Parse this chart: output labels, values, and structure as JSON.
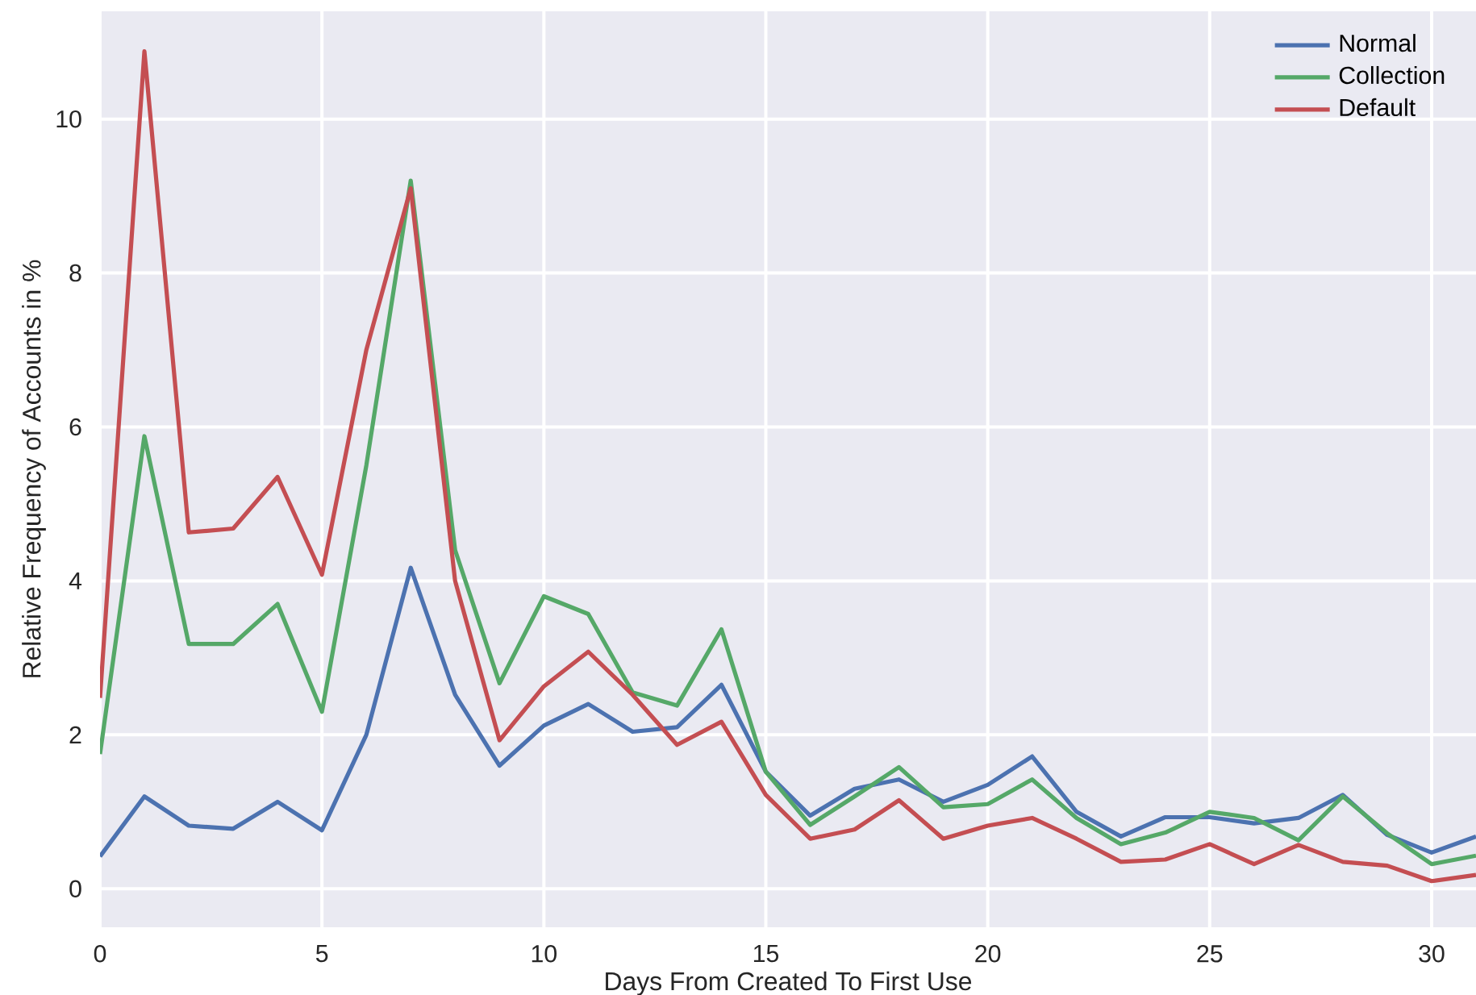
{
  "chart_data": {
    "type": "line",
    "xlabel": "Days From Created To First Use",
    "ylabel": "Relative Frequency of Accounts in %",
    "x": [
      0,
      1,
      2,
      3,
      4,
      5,
      6,
      7,
      8,
      9,
      10,
      11,
      12,
      13,
      14,
      15,
      16,
      17,
      18,
      19,
      20,
      21,
      22,
      23,
      24,
      25,
      26,
      27,
      28,
      29,
      30,
      31
    ],
    "series": [
      {
        "name": "Normal",
        "color": "#4c72b0",
        "values": [
          0.42,
          1.2,
          0.82,
          0.78,
          1.13,
          0.76,
          2.0,
          4.17,
          2.52,
          1.6,
          2.12,
          2.4,
          2.04,
          2.1,
          2.65,
          1.52,
          0.95,
          1.3,
          1.42,
          1.13,
          1.35,
          1.72,
          1.0,
          0.68,
          0.93,
          0.93,
          0.85,
          0.92,
          1.22,
          0.7,
          0.47,
          0.68
        ]
      },
      {
        "name": "Collection",
        "color": "#55a868",
        "values": [
          1.75,
          5.88,
          3.18,
          3.18,
          3.7,
          2.3,
          5.5,
          9.2,
          4.4,
          2.67,
          3.8,
          3.57,
          2.55,
          2.38,
          3.37,
          1.52,
          0.83,
          1.2,
          1.58,
          1.06,
          1.1,
          1.42,
          0.92,
          0.58,
          0.73,
          1.0,
          0.92,
          0.63,
          1.2,
          0.72,
          0.32,
          0.43
        ]
      },
      {
        "name": "Default",
        "color": "#c44e52",
        "values": [
          2.48,
          10.88,
          4.63,
          4.68,
          5.35,
          4.08,
          7.0,
          9.1,
          4.0,
          1.93,
          2.63,
          3.08,
          2.52,
          1.87,
          2.17,
          1.22,
          0.65,
          0.77,
          1.15,
          0.65,
          0.82,
          0.92,
          0.65,
          0.35,
          0.38,
          0.58,
          0.32,
          0.57,
          0.35,
          0.3,
          0.1,
          0.18
        ]
      }
    ],
    "xlim": [
      0,
      31
    ],
    "ylim": [
      -0.5,
      11.4
    ],
    "xticks": [
      0,
      5,
      10,
      15,
      20,
      25,
      30
    ],
    "yticks": [
      0,
      2,
      4,
      6,
      8,
      10
    ],
    "grid": true,
    "legend": "top right",
    "marker": "none",
    "line_style": "solid"
  }
}
